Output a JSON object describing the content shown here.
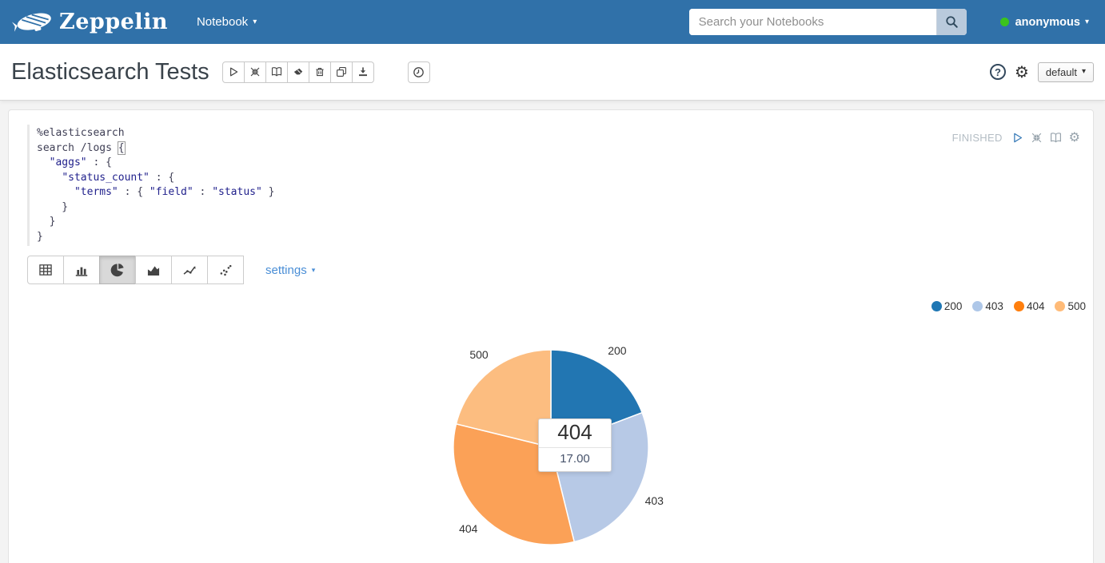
{
  "navbar": {
    "brand": "Zeppelin",
    "menu_label": "Notebook",
    "search_placeholder": "Search your Notebooks",
    "user_label": "anonymous"
  },
  "note_header": {
    "title": "Elasticsearch Tests",
    "interpreter_label": "default"
  },
  "paragraph": {
    "status": "FINISHED",
    "settings_label": "settings",
    "code": {
      "lines": [
        "%elasticsearch",
        "search /logs {",
        "  \"aggs\" : {",
        "    \"status_count\" : {",
        "      \"terms\" : { \"field\" : \"status\" }",
        "    }",
        "  }",
        "}"
      ],
      "cursor_line": 1
    }
  },
  "icons": {
    "caret_down": "▾",
    "gear_glyph": "⚙",
    "help_glyph": "?"
  },
  "chart_data": {
    "type": "pie",
    "title": "",
    "categories": [
      "200",
      "403",
      "404",
      "500"
    ],
    "values": [
      10,
      14,
      17,
      11
    ],
    "colors": [
      "#1f77b4",
      "#aec7e8",
      "#ff7f0e",
      "#ffbb78"
    ],
    "slice_colors": [
      "#2276b2",
      "#b7c9e6",
      "#fba157",
      "#fcbd80"
    ],
    "legend_position": "top-right",
    "start_angle_deg": 0,
    "tooltip": {
      "label": "404",
      "value": "17.00"
    }
  }
}
